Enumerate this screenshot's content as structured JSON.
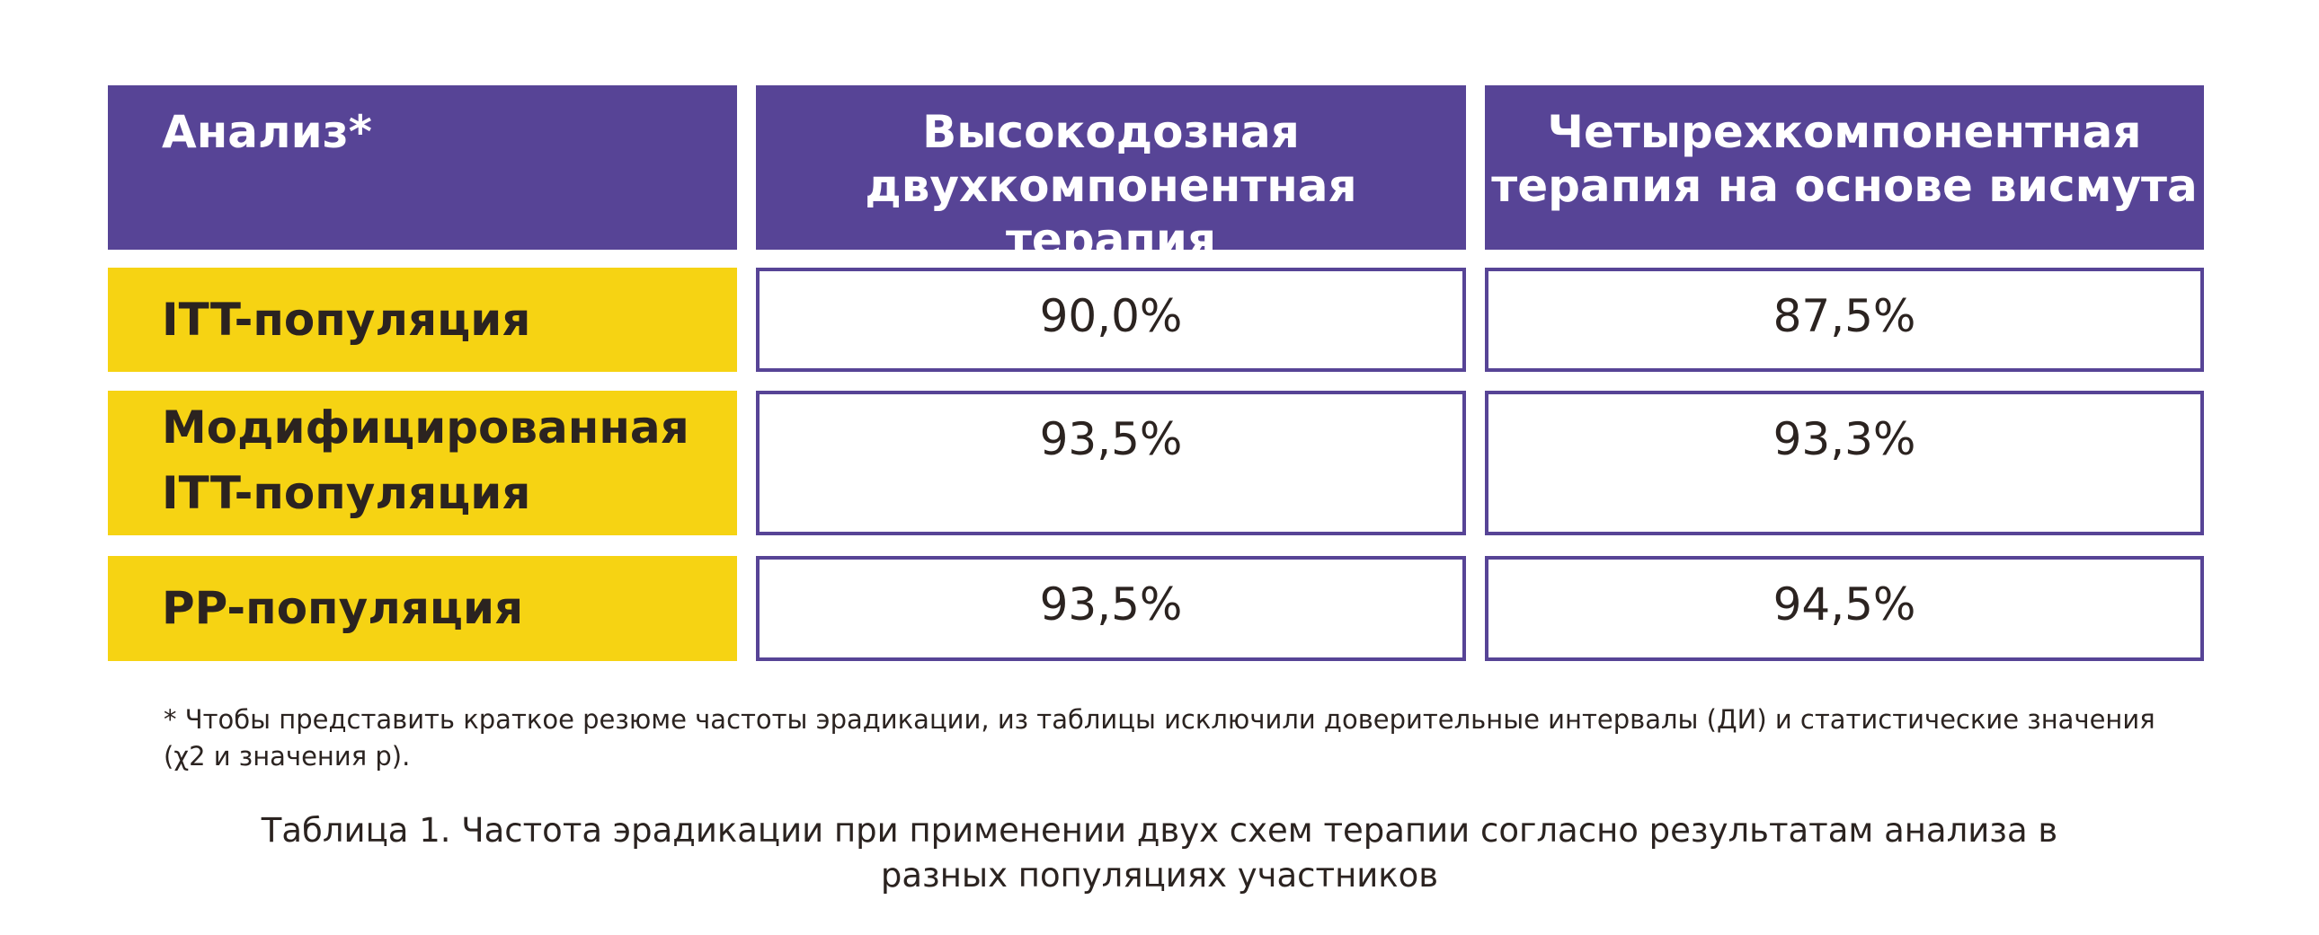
{
  "table": {
    "header": {
      "analysis": "Анализ*",
      "col1_line1": "Высокодозная",
      "col1_line2": "двухкомпонентная терапия",
      "col2_line1": "Четырехкомпонентная",
      "col2_line2": "терапия на основе висмута"
    },
    "rows": [
      {
        "label_line1": "ITT-популяция",
        "label_line2": "",
        "col1": "90,0%",
        "col2": "87,5%"
      },
      {
        "label_line1": "Модифицированная",
        "label_line2": "ITT-популяция",
        "col1": "93,5%",
        "col2": "93,3%"
      },
      {
        "label_line1": "PP-популяция",
        "label_line2": "",
        "col1": "93,5%",
        "col2": "94,5%"
      }
    ]
  },
  "footnote": {
    "line1": "* Чтобы представить краткое резюме частоты эрадикации, из таблицы исключили доверительные интервалы (ДИ) и статистические значения",
    "line2": "(χ2 и значения p)."
  },
  "caption": {
    "line1": "Таблица 1. Частота эрадикации при применении двух схем терапии согласно результатам анализа в",
    "line2": "разных популяциях участников"
  }
}
